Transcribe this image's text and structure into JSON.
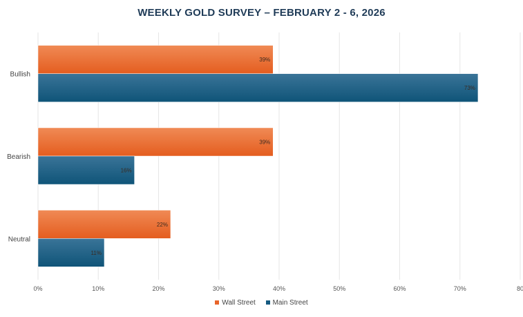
{
  "chart_data": {
    "type": "bar",
    "orientation": "horizontal",
    "title": "WEEKLY GOLD SURVEY – FEBRUARY 2 - 6, 2026",
    "categories": [
      "Bullish",
      "Bearish",
      "Neutral"
    ],
    "series": [
      {
        "name": "Wall Street",
        "values": [
          39,
          39,
          22
        ],
        "labels": [
          "39%",
          "39%",
          "22%"
        ],
        "color": "#e8652a"
      },
      {
        "name": "Main Street",
        "values": [
          73,
          16,
          11
        ],
        "labels": [
          "73%",
          "16%",
          "11%"
        ],
        "color": "#155a80"
      }
    ],
    "xlim": [
      0,
      80
    ],
    "xticks": [
      "0%",
      "10%",
      "20%",
      "30%",
      "40%",
      "50%",
      "60%",
      "70%",
      "80"
    ],
    "grid": true,
    "legend": "bottom"
  }
}
